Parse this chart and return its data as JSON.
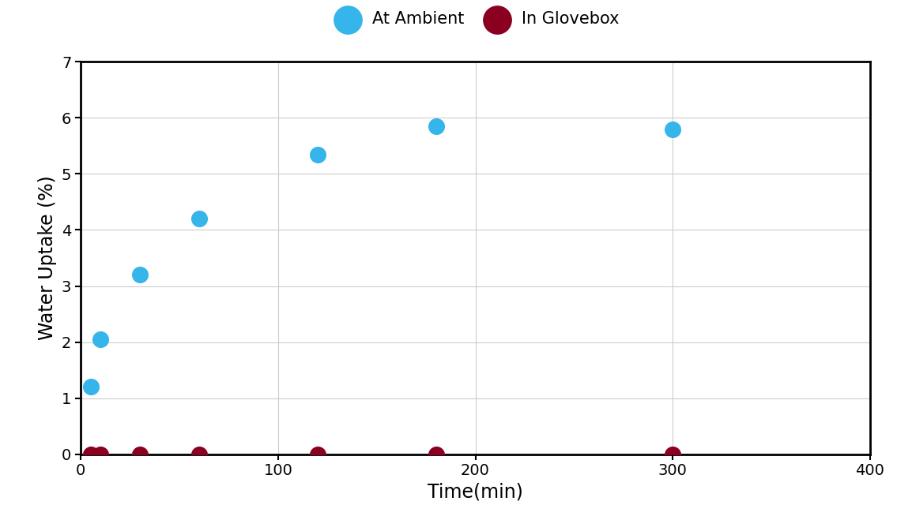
{
  "ambient_x": [
    5,
    10,
    30,
    60,
    120,
    180,
    300
  ],
  "ambient_y": [
    1.2,
    2.05,
    3.2,
    4.2,
    5.35,
    5.85,
    5.8
  ],
  "glovebox_x": [
    5,
    10,
    30,
    60,
    120,
    180,
    300
  ],
  "glovebox_y": [
    0.0,
    0.0,
    0.0,
    0.0,
    0.0,
    0.0,
    0.0
  ],
  "ambient_color": "#35B5E9",
  "glovebox_color": "#8B0020",
  "ambient_label": "At Ambient",
  "glovebox_label": "In Glovebox",
  "xlabel": "Time(min)",
  "ylabel": "Water Uptake (%)",
  "xlim": [
    0,
    400
  ],
  "ylim": [
    0,
    7
  ],
  "xticks": [
    0,
    100,
    200,
    300,
    400
  ],
  "yticks": [
    0,
    1,
    2,
    3,
    4,
    5,
    6,
    7
  ],
  "marker_size": 200,
  "label_fontsize": 17,
  "tick_fontsize": 14,
  "legend_fontsize": 15,
  "fig_width": 11.35,
  "fig_height": 6.54,
  "background_color": "#ffffff"
}
